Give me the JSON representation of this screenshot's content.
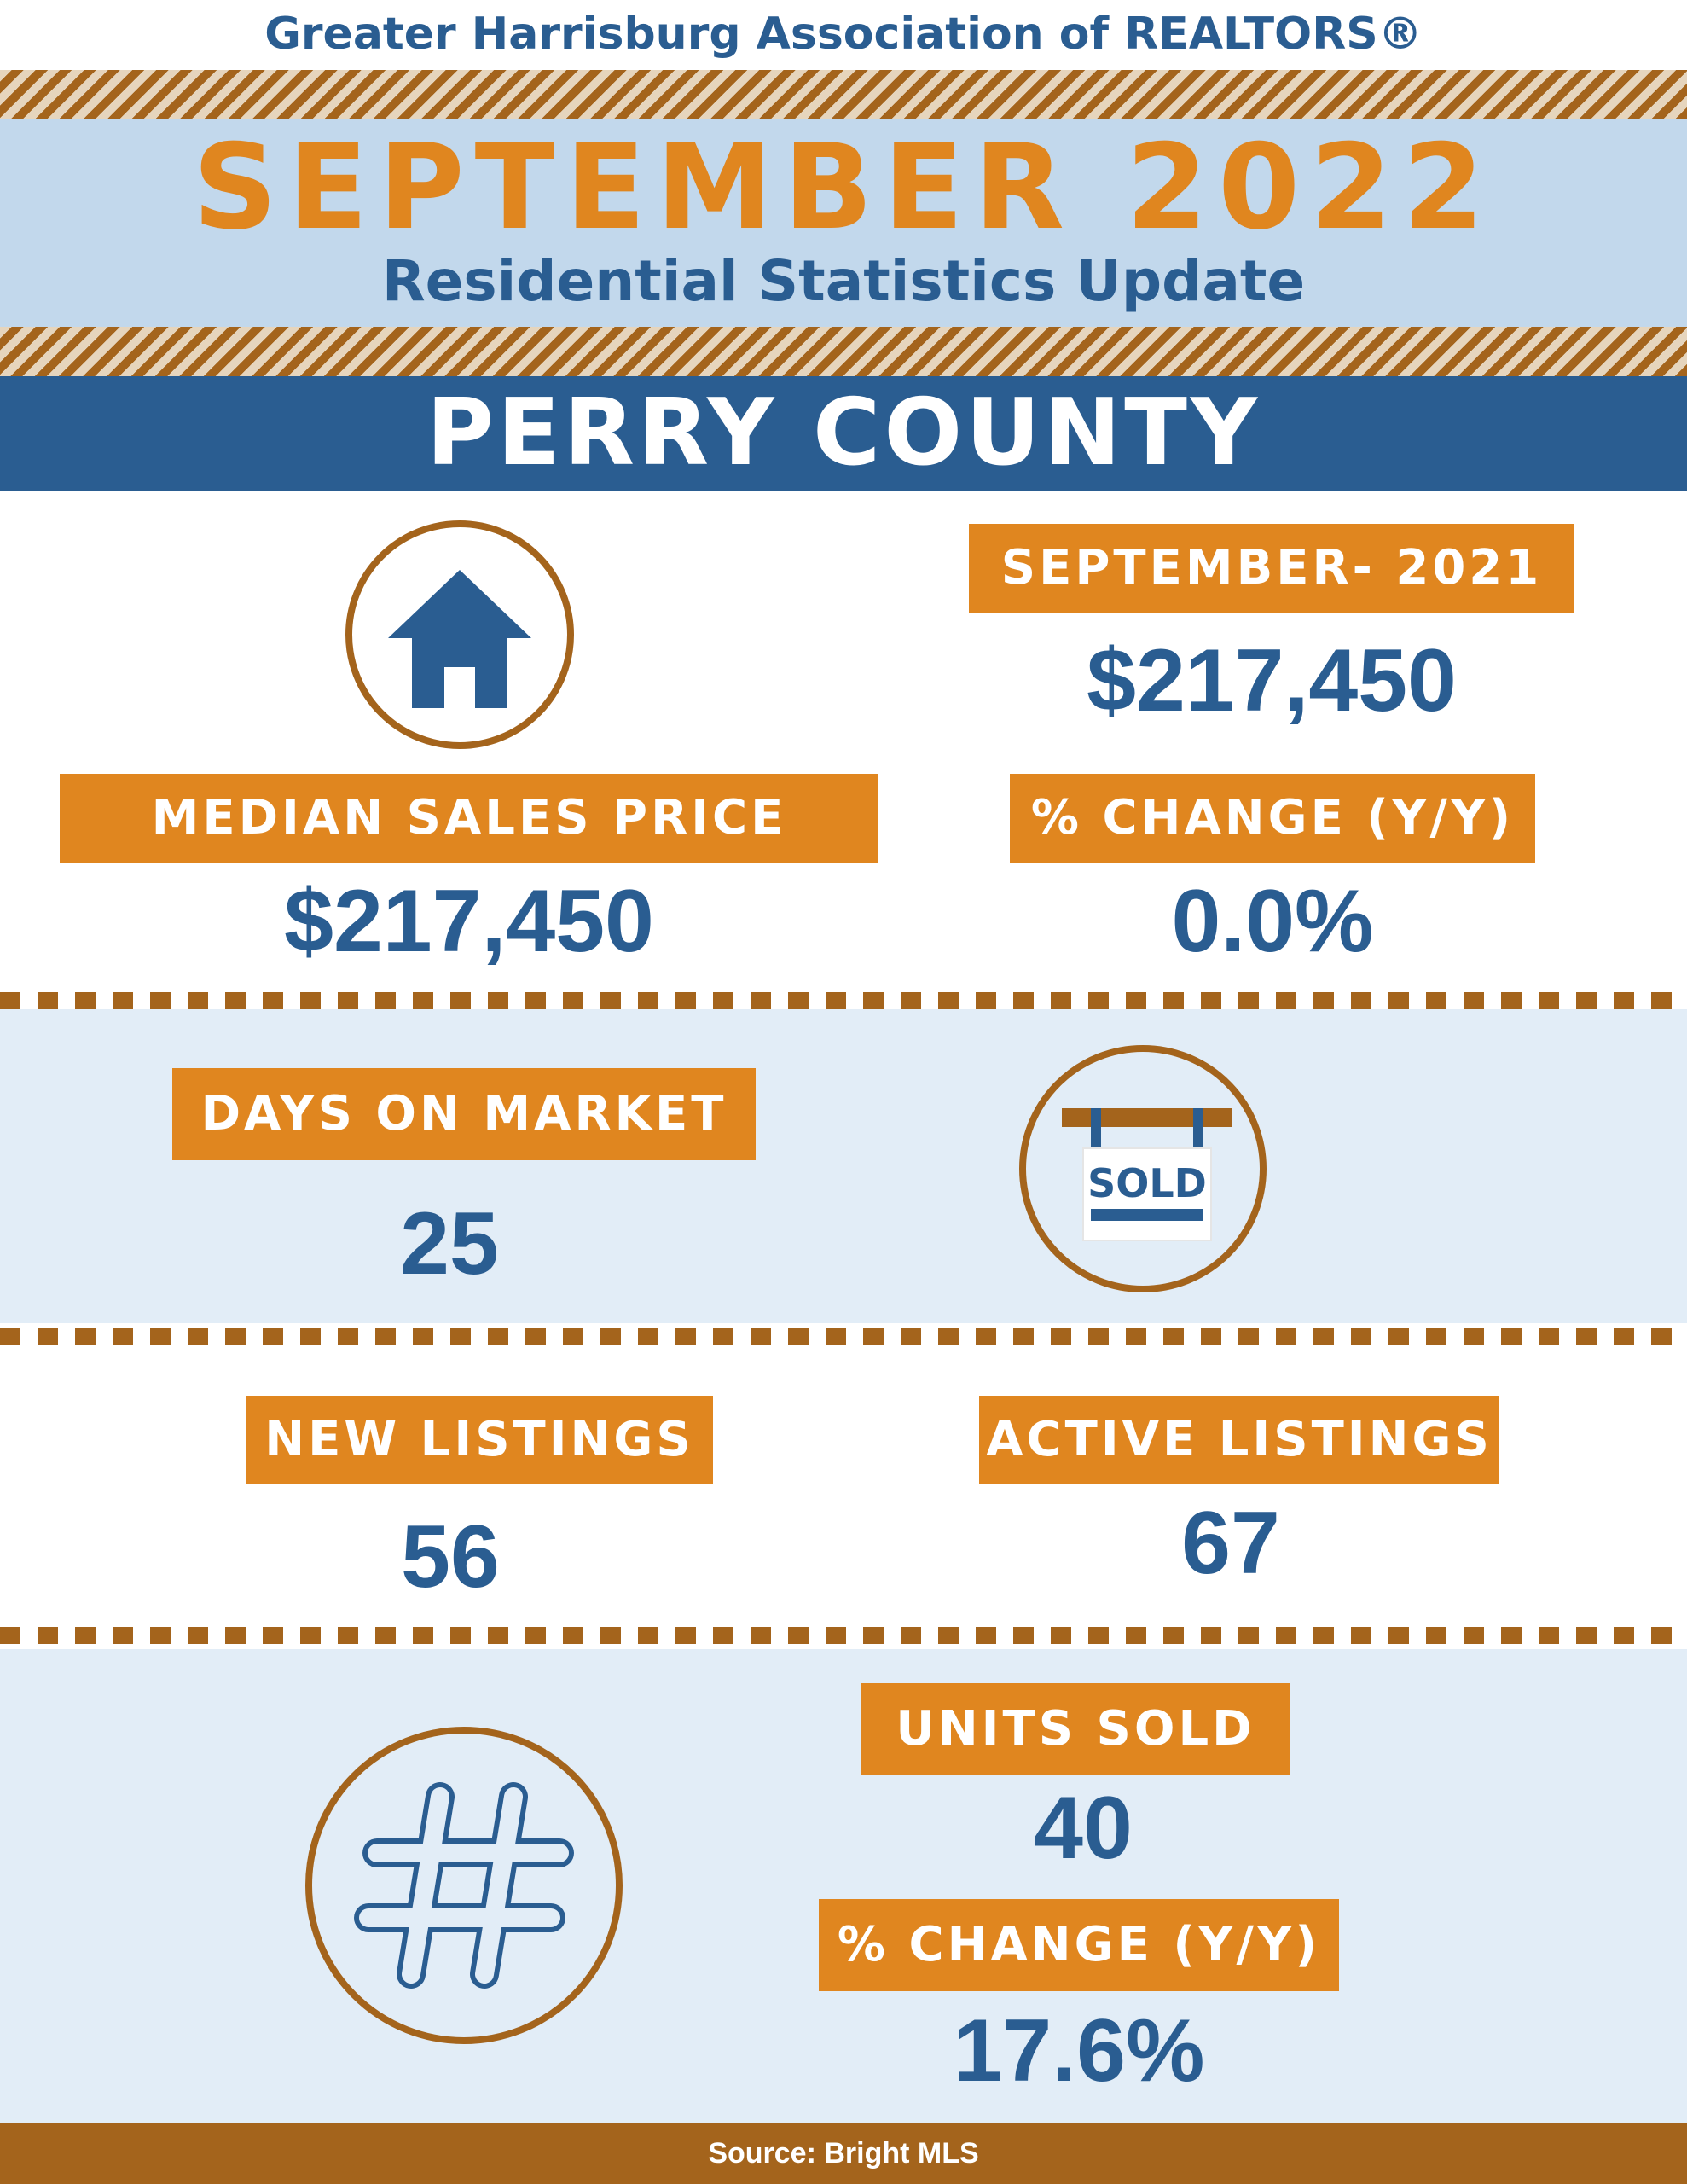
{
  "header": {
    "organization": "Greater Harrisburg Association of REALTORS®",
    "month_title": "SEPTEMBER 2022",
    "subtitle": "Residential Statistics Update",
    "county": "PERRY COUNTY"
  },
  "median_sales_price": {
    "label": "MEDIAN SALES PRICE",
    "value": "$217,450",
    "prior_label": "SEPTEMBER- 2021",
    "prior_value": "$217,450",
    "change_label": "% CHANGE (Y/Y)",
    "change_value": "0.0%"
  },
  "days_on_market": {
    "label": "DAYS ON MARKET",
    "value": "25",
    "icon_text": "SOLD"
  },
  "listings": {
    "new_label": "NEW LISTINGS",
    "new_value": "56",
    "active_label": "ACTIVE LISTINGS",
    "active_value": "67"
  },
  "units_sold": {
    "label": "UNITS SOLD",
    "value": "40",
    "change_label": "% CHANGE (Y/Y)",
    "change_value": "17.6%"
  },
  "footer": {
    "source": "Source: Bright MLS"
  },
  "icons": {
    "home": "house-icon",
    "sold": "sold-sign-icon",
    "units": "hashtag-icon"
  },
  "colors": {
    "blue": "#2a5d91",
    "orange": "#e0861f",
    "brown": "#a4641c",
    "light_blue": "#c2d8ec",
    "pale_blue": "#e2edf7"
  }
}
